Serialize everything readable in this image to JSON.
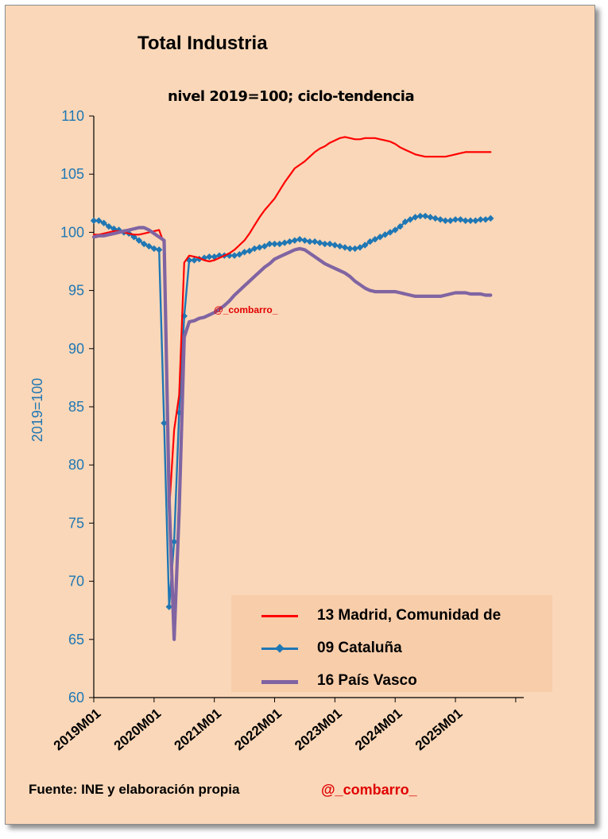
{
  "chart_data": {
    "type": "line",
    "title": "Total Industria",
    "subtitle": "nivel 2019=100; ciclo-tendencia",
    "xlabel": "",
    "ylabel": "2019=100",
    "ylim": [
      60,
      110
    ],
    "yticks": [
      60,
      65,
      70,
      75,
      80,
      85,
      90,
      95,
      100,
      105,
      110
    ],
    "x_start": "2019M01",
    "x_tick_labels": [
      "2019M01",
      "2020M01",
      "2021M01",
      "2022M01",
      "2023M01",
      "2024M01",
      "2025M01"
    ],
    "grid": false,
    "legend_position": "bottom-right",
    "watermark": "@_combarro_",
    "series": [
      {
        "name": "13 Madrid, Comunidad de",
        "color": "#ff0000",
        "marker": "none",
        "values": [
          99.8,
          99.8,
          99.9,
          100.0,
          100.1,
          100.1,
          100.0,
          99.9,
          99.8,
          99.8,
          99.9,
          100.0,
          100.1,
          100.2,
          99.0,
          76.0,
          83.0,
          86.0,
          97.4,
          98.0,
          97.9,
          97.8,
          97.6,
          97.5,
          97.6,
          97.8,
          98.0,
          98.2,
          98.5,
          98.9,
          99.3,
          99.9,
          100.6,
          101.3,
          101.9,
          102.4,
          102.9,
          103.6,
          104.3,
          104.9,
          105.5,
          105.8,
          106.1,
          106.5,
          106.9,
          107.2,
          107.4,
          107.7,
          107.9,
          108.1,
          108.2,
          108.1,
          108.0,
          108.0,
          108.1,
          108.1,
          108.1,
          108.0,
          107.9,
          107.8,
          107.6,
          107.3,
          107.1,
          106.9,
          106.7,
          106.6,
          106.5,
          106.5,
          106.5,
          106.5,
          106.5,
          106.6,
          106.7,
          106.8,
          106.9,
          106.9,
          106.9,
          106.9,
          106.9,
          106.9
        ]
      },
      {
        "name": "09 Cataluña",
        "color": "#1f77b4",
        "marker": "diamond",
        "values": [
          101.0,
          101.0,
          100.8,
          100.5,
          100.3,
          100.2,
          100.0,
          99.9,
          99.6,
          99.3,
          99.0,
          98.8,
          98.6,
          98.5,
          83.6,
          67.8,
          73.4,
          84.5,
          92.8,
          97.6,
          97.6,
          97.7,
          97.8,
          97.9,
          97.9,
          98.0,
          98.0,
          98.0,
          98.0,
          98.1,
          98.3,
          98.4,
          98.6,
          98.7,
          98.8,
          99.0,
          99.0,
          99.0,
          99.1,
          99.2,
          99.3,
          99.4,
          99.3,
          99.2,
          99.2,
          99.1,
          99.0,
          99.0,
          98.9,
          98.8,
          98.7,
          98.6,
          98.6,
          98.7,
          98.9,
          99.2,
          99.4,
          99.6,
          99.8,
          100.0,
          100.2,
          100.5,
          100.9,
          101.1,
          101.3,
          101.4,
          101.4,
          101.3,
          101.2,
          101.1,
          101.0,
          101.0,
          101.1,
          101.1,
          101.0,
          101.0,
          101.0,
          101.1,
          101.1,
          101.2
        ]
      },
      {
        "name": "16 País Vasco",
        "color": "#8064a2",
        "marker": "none",
        "values": [
          99.6,
          99.7,
          99.7,
          99.8,
          99.9,
          100.0,
          100.1,
          100.2,
          100.3,
          100.4,
          100.4,
          100.2,
          99.9,
          99.6,
          99.3,
          77.0,
          65.0,
          76.0,
          91.0,
          92.3,
          92.4,
          92.6,
          92.7,
          92.9,
          93.1,
          93.4,
          93.7,
          94.1,
          94.6,
          95.0,
          95.4,
          95.8,
          96.2,
          96.6,
          97.0,
          97.3,
          97.7,
          97.9,
          98.1,
          98.3,
          98.5,
          98.6,
          98.5,
          98.2,
          97.9,
          97.6,
          97.3,
          97.1,
          96.9,
          96.7,
          96.5,
          96.2,
          95.8,
          95.5,
          95.2,
          95.0,
          94.9,
          94.9,
          94.9,
          94.9,
          94.9,
          94.8,
          94.7,
          94.6,
          94.5,
          94.5,
          94.5,
          94.5,
          94.5,
          94.5,
          94.6,
          94.7,
          94.8,
          94.8,
          94.8,
          94.7,
          94.7,
          94.7,
          94.6,
          94.6
        ]
      }
    ]
  },
  "footer": {
    "source": "Fuente: INE  y elaboración propia",
    "handle": "@_combarro_"
  }
}
